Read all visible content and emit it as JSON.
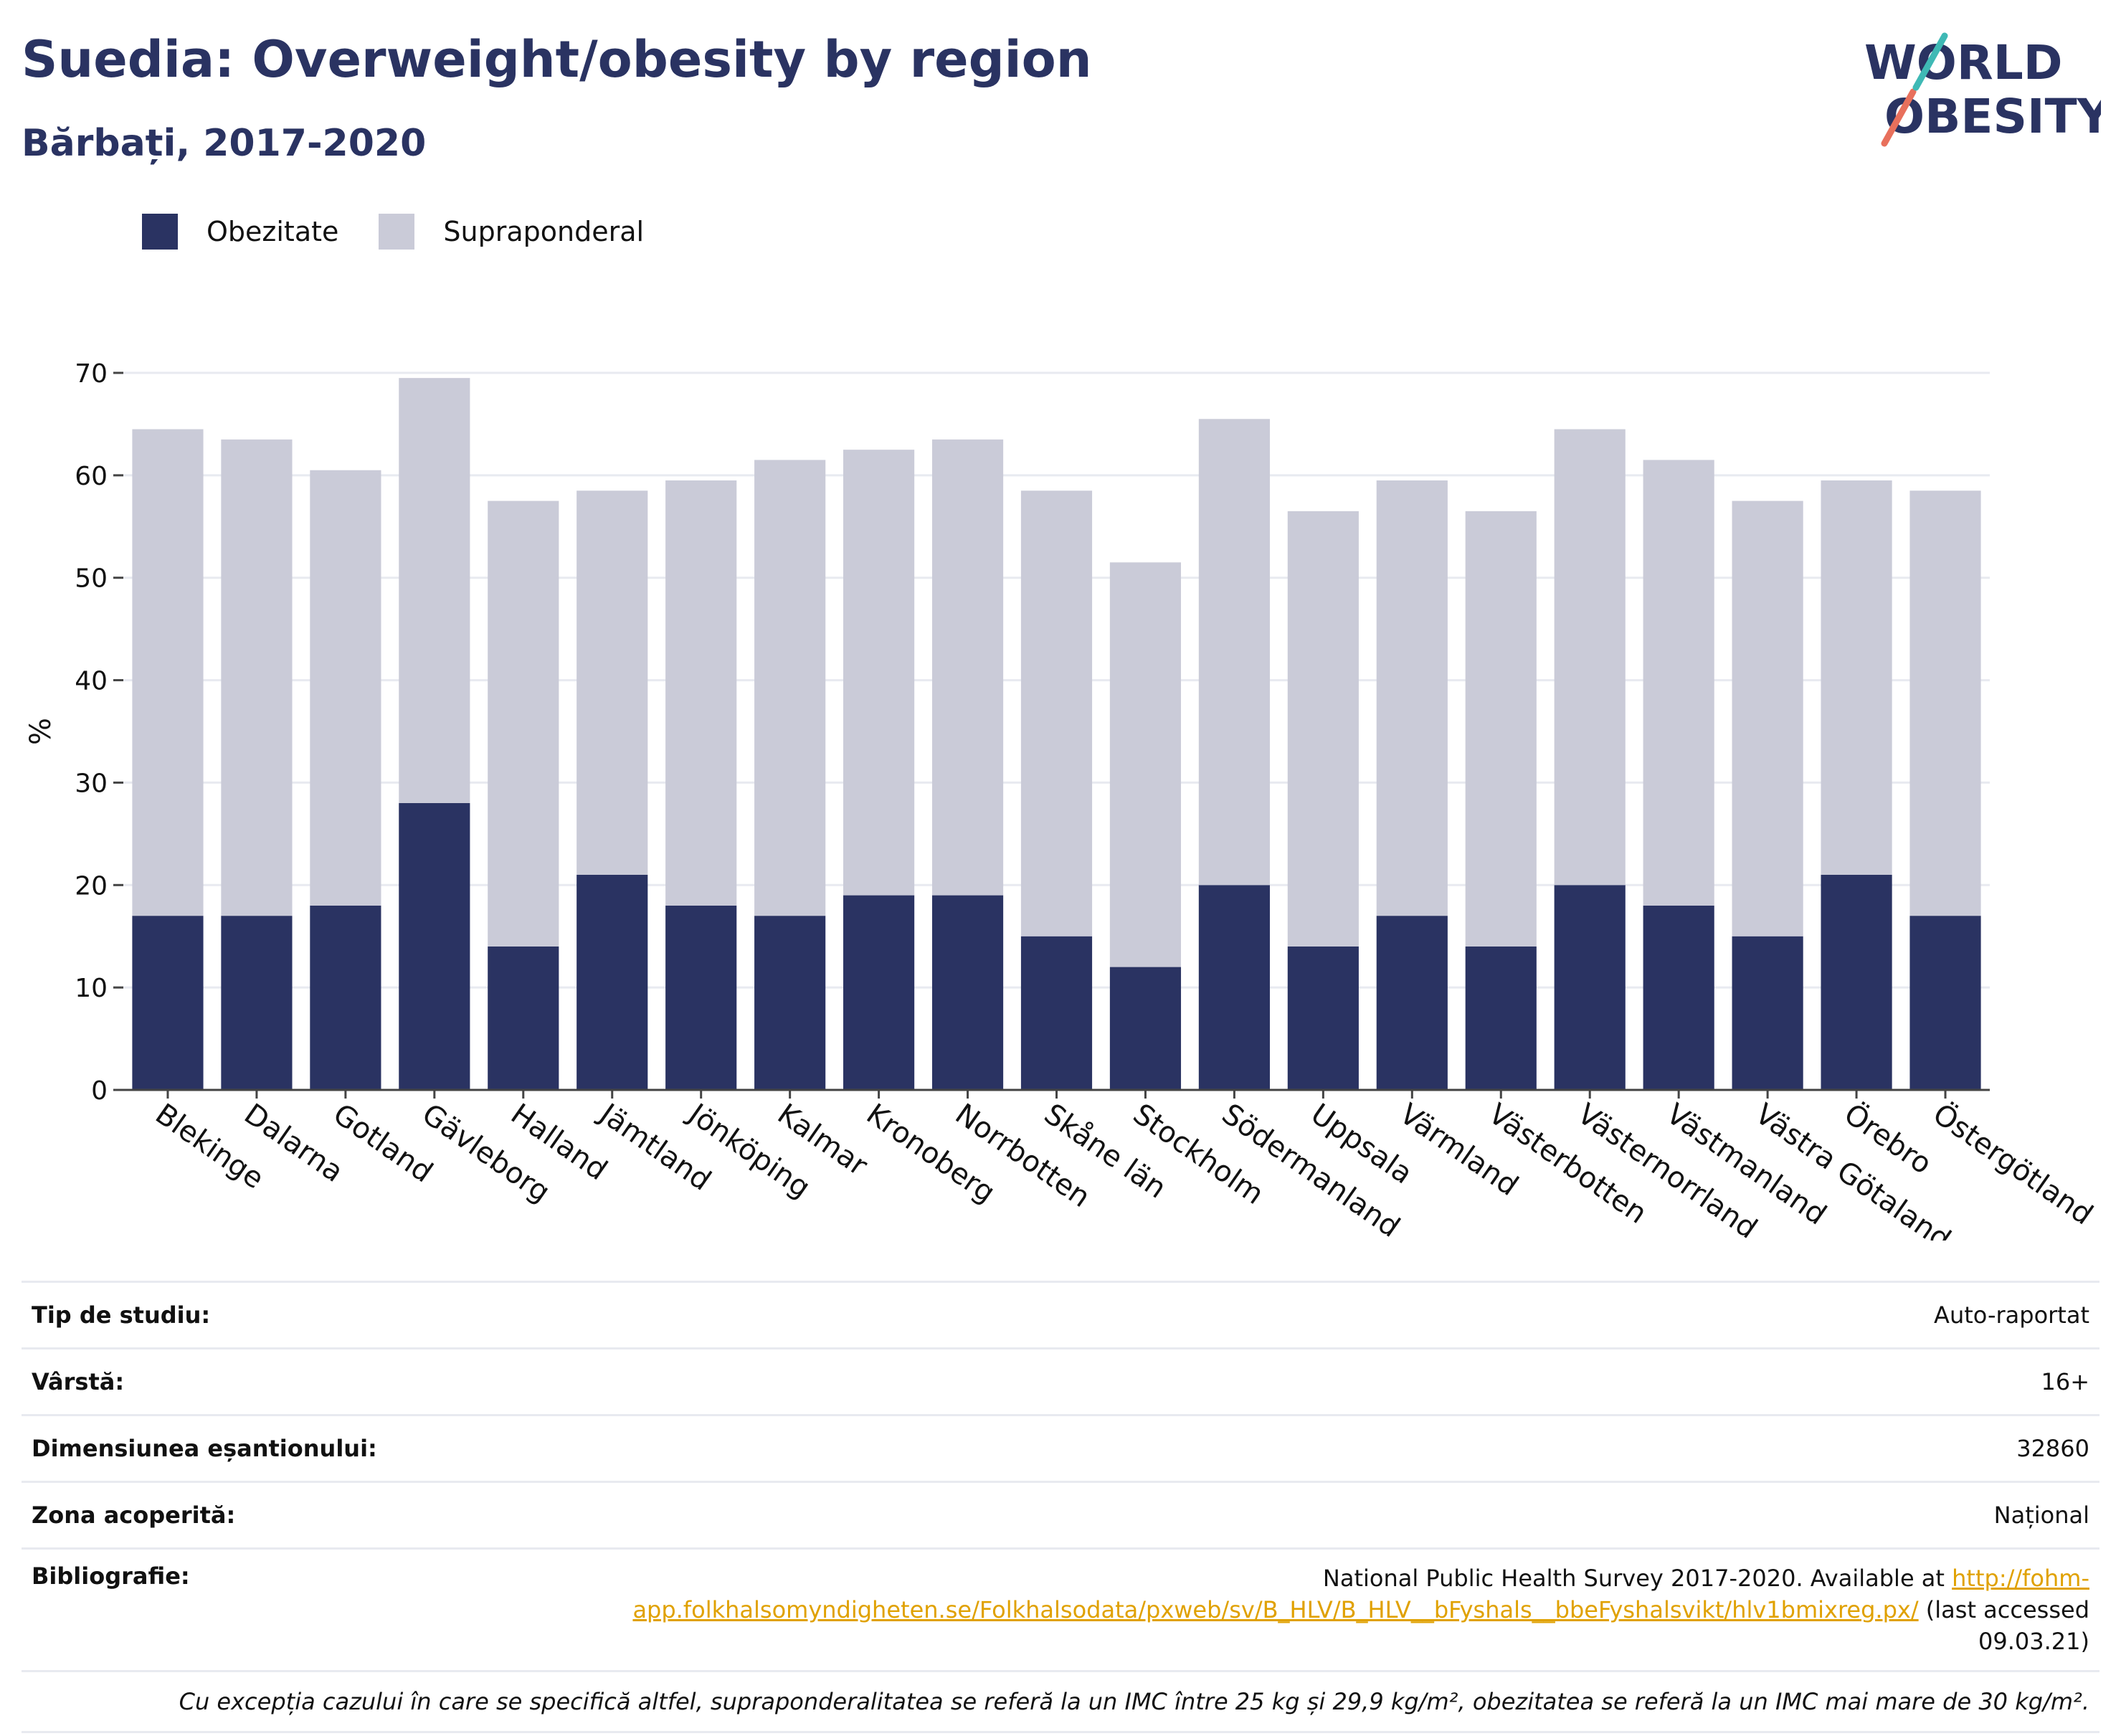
{
  "title": "Suedia: Overweight/obesity by region",
  "subtitle": "Bărbați, 2017-2020",
  "logo": {
    "line1": "WORLD",
    "line2": "OBESITY"
  },
  "colors": {
    "obesity": "#2a3362",
    "overweight": "#cacbd8",
    "title": "#2a3362",
    "link": "#e0a100",
    "logo_teal": "#3fb9b5",
    "logo_coral": "#e8705c"
  },
  "legend": [
    {
      "label": "Obezitate",
      "color": "#2a3362"
    },
    {
      "label": "Supraponderal",
      "color": "#cacbd8"
    }
  ],
  "chart_data": {
    "type": "bar",
    "stacked": true,
    "categories": [
      "Blekinge",
      "Dalarna",
      "Gotland",
      "Gävleborg",
      "Halland",
      "Jämtland",
      "Jönköping",
      "Kalmar",
      "Kronoberg",
      "Norrbotten",
      "Skåne län",
      "Stockholm",
      "Södermanland",
      "Uppsala",
      "Värmland",
      "Västerbotten",
      "Västernorrland",
      "Västmanland",
      "Västra Götaland",
      "Örebro",
      "Östergötland"
    ],
    "series": [
      {
        "name": "Obezitate",
        "values": [
          17,
          17,
          18,
          28,
          14,
          21,
          18,
          17,
          19,
          19,
          15,
          12,
          20,
          14,
          17,
          14,
          20,
          18,
          15,
          21,
          17
        ]
      },
      {
        "name": "Supraponderal",
        "values": [
          47.5,
          46.5,
          42.5,
          41.5,
          43.5,
          37.5,
          41.5,
          44.5,
          43.5,
          44.5,
          43.5,
          39.5,
          45.5,
          42.5,
          42.5,
          42.5,
          44.5,
          43.5,
          42.5,
          38.5,
          41.5
        ]
      }
    ],
    "ylabel": "%",
    "xlabel": "",
    "ylim": [
      0,
      70
    ],
    "yticks": [
      0,
      10,
      20,
      30,
      40,
      50,
      60,
      70
    ],
    "grid": true,
    "legend_position": "top-left"
  },
  "meta": {
    "study_type_label": "Tip de studiu:",
    "study_type_value": "Auto-raportat",
    "age_label": "Vârstă:",
    "age_value": "16+",
    "sample_label": "Dimensiunea eșantionului:",
    "sample_value": "32860",
    "area_label": "Zona acoperită:",
    "area_value": "Național",
    "biblio_label": "Bibliografie:",
    "biblio_text": "National Public Health Survey 2017-2020. Available at ",
    "biblio_link": "http://fohm-app.folkhalsomyndigheten.se/Folkhalsodata/pxweb/sv/B_HLV/B_HLV__bFyshals__bbeFyshalsvikt/hlv1bmixreg.px/",
    "biblio_suffix": " (last accessed 09.03.21)",
    "note": "Cu excepția cazului în care se specifică altfel, supraponderalitatea se referă la un IMC între 25 kg și 29,9 kg/m², obezitatea se referă la un IMC mai mare de 30 kg/m²."
  }
}
